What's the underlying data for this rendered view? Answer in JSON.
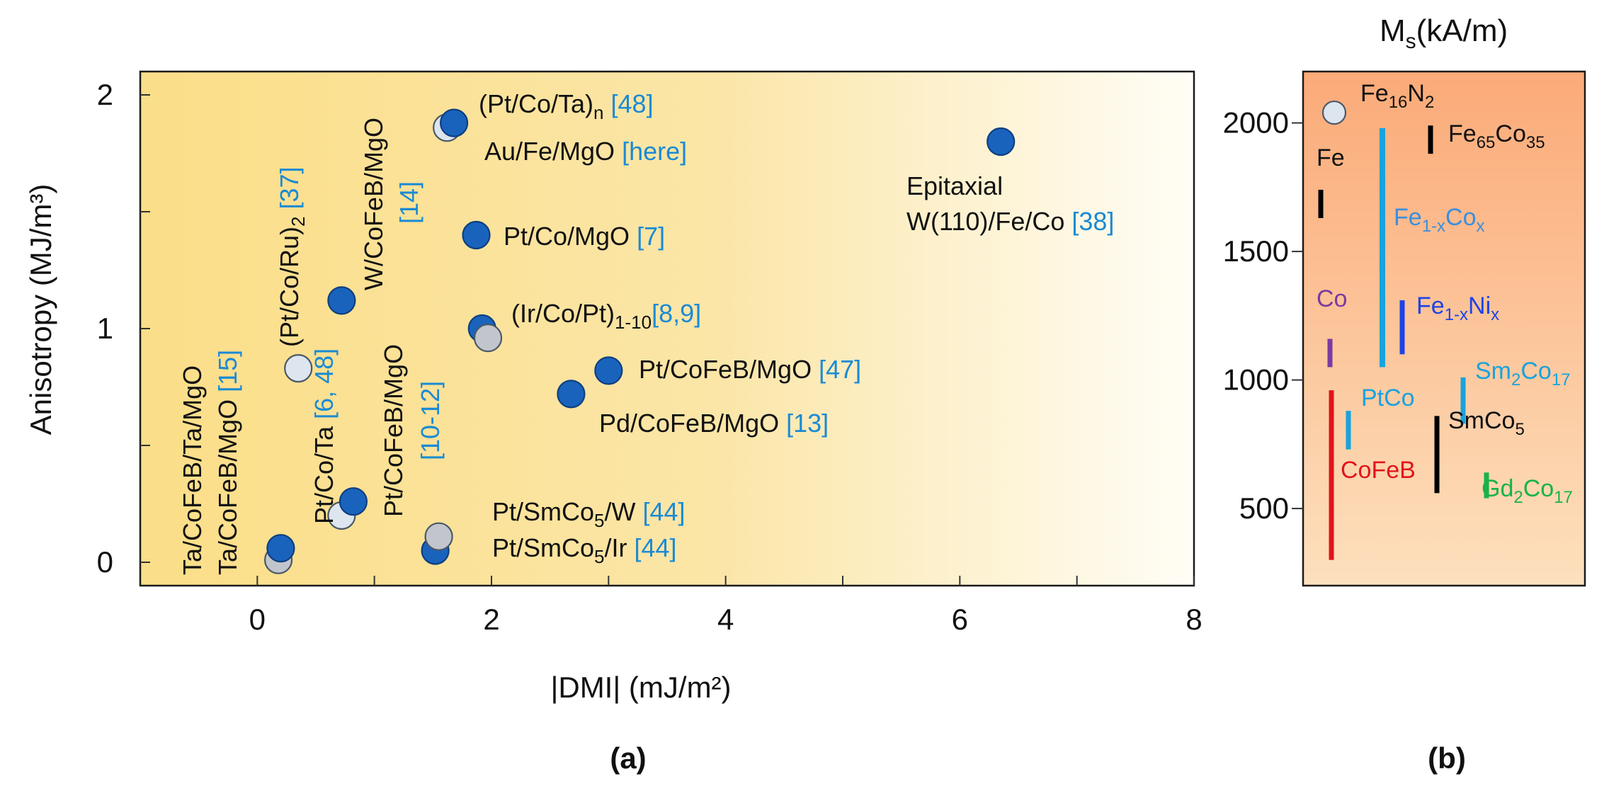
{
  "chart_data": [
    {
      "type": "scatter",
      "panel_label": "(a)",
      "xlabel": "|DMI| (mJ/m²)",
      "ylabel": "Anisotropy (MJ/m³)",
      "xlim": [
        -1,
        8
      ],
      "ylim": [
        -0.1,
        2.1
      ],
      "xticks": [
        0,
        2,
        4,
        6,
        8
      ],
      "yticks": [
        0,
        1,
        2
      ],
      "ytick_labels": [
        "0",
        "1",
        "2"
      ],
      "grid": false,
      "colors": {
        "filled": "#1a63bd",
        "open": "#dde5ef",
        "grey": "#c2c6cc",
        "bg_left": "#fbde88",
        "bg_right": "#fffdf6",
        "ref": "#1a8ad4"
      },
      "points": [
        {
          "x": 0.18,
          "y": 0.01,
          "style": "grey"
        },
        {
          "x": 0.2,
          "y": 0.06,
          "style": "filled"
        },
        {
          "x": 0.35,
          "y": 0.83,
          "style": "open"
        },
        {
          "x": 0.72,
          "y": 0.2,
          "style": "open"
        },
        {
          "x": 0.82,
          "y": 0.26,
          "style": "filled"
        },
        {
          "x": 0.72,
          "y": 1.12,
          "style": "filled"
        },
        {
          "x": 1.52,
          "y": 0.05,
          "style": "filled"
        },
        {
          "x": 1.55,
          "y": 0.11,
          "style": "grey"
        },
        {
          "x": 1.62,
          "y": 1.86,
          "style": "open"
        },
        {
          "x": 1.68,
          "y": 1.88,
          "style": "filled"
        },
        {
          "x": 1.87,
          "y": 1.4,
          "style": "filled"
        },
        {
          "x": 1.92,
          "y": 1.0,
          "style": "filled"
        },
        {
          "x": 1.97,
          "y": 0.96,
          "style": "grey"
        },
        {
          "x": 2.68,
          "y": 0.72,
          "style": "filled"
        },
        {
          "x": 3.0,
          "y": 0.82,
          "style": "filled"
        },
        {
          "x": 6.35,
          "y": 1.8,
          "style": "filled"
        }
      ],
      "annotations": [
        {
          "text": "(Pt/Co/Ta)",
          "sub": "n",
          "ref": " [48]"
        },
        {
          "text": "Au/Fe/MgO ",
          "ref": "[here]"
        },
        {
          "text": "Epitaxial"
        },
        {
          "text": "W(110)/Fe/Co ",
          "ref": "[38]"
        },
        {
          "text": "Pt/Co/MgO ",
          "ref": "[7]"
        },
        {
          "text": "(Ir/Co/Pt)",
          "sub": "1-10",
          "ref": "[8,9]"
        },
        {
          "text": "Pt/CoFeB/MgO ",
          "ref": "[47]"
        },
        {
          "text": "Pd/CoFeB/MgO ",
          "ref": "[13]"
        },
        {
          "text": "Pt/SmCo",
          "sub": "5",
          "text2": "/W ",
          "ref": "[44]"
        },
        {
          "text": "Pt/SmCo",
          "sub": "5",
          "text2": "/Ir ",
          "ref": "[44]"
        },
        {
          "text": "Ta/CoFeB/Ta/MgO"
        },
        {
          "text": "Ta/CoFeB/MgO ",
          "ref": "[15]"
        },
        {
          "text": "(Pt/Co/Ru)",
          "sub": "2",
          "ref": " [37]"
        },
        {
          "text": "Pt/Co/Ta ",
          "ref": "[6, 48]"
        },
        {
          "text": "W/CoFeB/MgO"
        },
        {
          "ref": "[14]"
        },
        {
          "text": "Pt/CoFeB/MgO"
        },
        {
          "ref": "[10-12]"
        }
      ]
    },
    {
      "type": "range",
      "panel_label": "(b)",
      "title": "Ms(kA/m)",
      "title_main": "M",
      "title_sub": "s",
      "title_rest": "(kA/m)",
      "ylim": [
        200,
        2200
      ],
      "yticks": [
        500,
        1000,
        1500,
        2000
      ],
      "ytick_labels": [
        "500",
        "1000",
        "1500",
        "2000"
      ],
      "colors": {
        "bg_top": "#fbaa78",
        "bg_bottom": "#fde0bd"
      },
      "ranges": [
        {
          "label": "Fe",
          "sub": "",
          "min": 1630,
          "max": 1740,
          "color": "#000000"
        },
        {
          "label": "Fe",
          "sub": "65",
          "label2": "Co",
          "sub2": "35",
          "min": 1880,
          "max": 1990,
          "color": "#000000"
        },
        {
          "label": "Fe",
          "sub": "1-x",
          "label2": "Co",
          "sub2": "x",
          "min": 1050,
          "max": 1980,
          "color": "#1aa2dc"
        },
        {
          "label": "Fe",
          "sub": "1-x",
          "label2": "Ni",
          "sub2": "x",
          "min": 1100,
          "max": 1310,
          "color": "#1e43e6"
        },
        {
          "label": "Co",
          "sub": "",
          "min": 1050,
          "max": 1160,
          "color": "#7a3aa0"
        },
        {
          "label": "Sm",
          "sub": "2",
          "label2": "Co",
          "sub2": "17",
          "min": 830,
          "max": 1010,
          "color": "#1aa2dc"
        },
        {
          "label": "PtCo",
          "sub": "",
          "min": 730,
          "max": 880,
          "color": "#1aa2dc"
        },
        {
          "label": "SmCo",
          "sub": "5",
          "min": 560,
          "max": 860,
          "color": "#000000"
        },
        {
          "label": "CoFeB",
          "sub": "",
          "min": 300,
          "max": 960,
          "color": "#e2141b"
        },
        {
          "label": "Gd",
          "sub": "2",
          "label2": "Co",
          "sub2": "17",
          "min": 540,
          "max": 640,
          "color": "#19b24a"
        }
      ],
      "points": [
        {
          "label": "Fe",
          "sub": "16",
          "label2": "N",
          "sub2": "2",
          "y": 2040,
          "style": "open"
        }
      ]
    }
  ]
}
